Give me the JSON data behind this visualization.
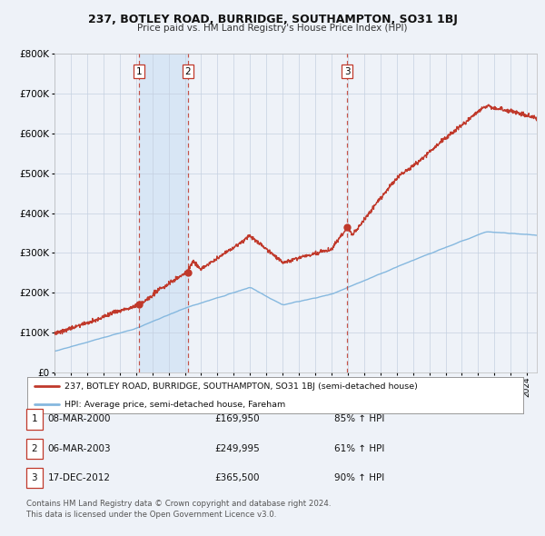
{
  "title1": "237, BOTLEY ROAD, BURRIDGE, SOUTHAMPTON, SO31 1BJ",
  "title2": "Price paid vs. HM Land Registry's House Price Index (HPI)",
  "legend_label_red": "237, BOTLEY ROAD, BURRIDGE, SOUTHAMPTON, SO31 1BJ (semi-detached house)",
  "legend_label_blue": "HPI: Average price, semi-detached house, Fareham",
  "transactions": [
    {
      "num": 1,
      "date": "08-MAR-2000",
      "price": 169950,
      "pct": "85%",
      "dir": "↑",
      "year": 2000.19
    },
    {
      "num": 2,
      "date": "06-MAR-2003",
      "price": 249995,
      "pct": "61%",
      "dir": "↑",
      "year": 2003.18
    },
    {
      "num": 3,
      "date": "17-DEC-2012",
      "price": 365500,
      "pct": "90%",
      "dir": "↑",
      "year": 2012.96
    }
  ],
  "footnote1": "Contains HM Land Registry data © Crown copyright and database right 2024.",
  "footnote2": "This data is licensed under the Open Government Licence v3.0.",
  "bg_color": "#eef2f8",
  "red_color": "#c0392b",
  "blue_color": "#85b8df",
  "highlight_bg": "#d8e6f5",
  "grid_color": "#c5d0e0",
  "xmin": 1995,
  "xmax": 2024.6,
  "ymin": 0,
  "ymax": 800000
}
